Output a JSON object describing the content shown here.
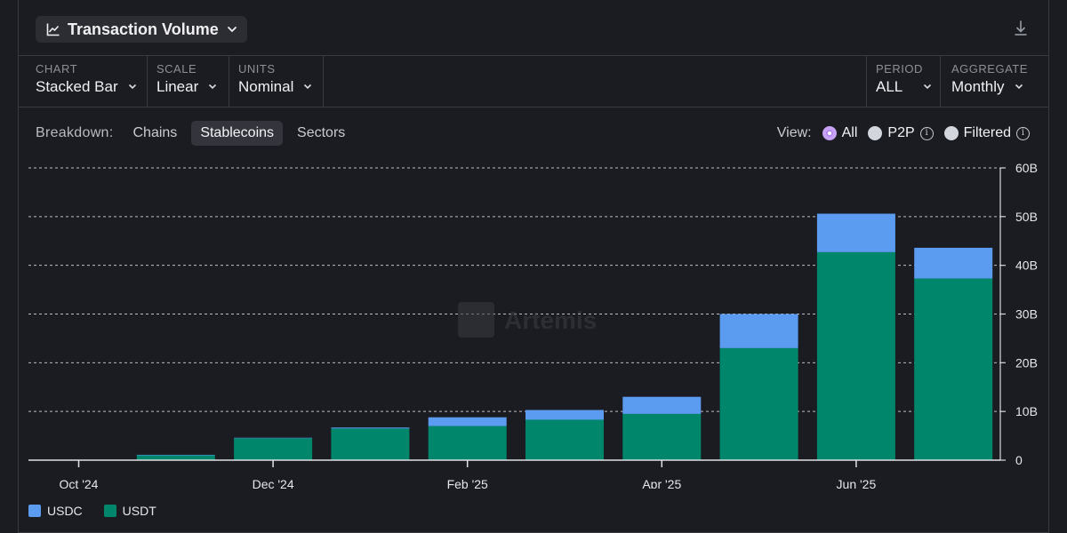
{
  "header": {
    "metric_label": "Transaction Volume"
  },
  "controls": {
    "chart": {
      "caption": "CHART",
      "value": "Stacked Bar"
    },
    "scale": {
      "caption": "SCALE",
      "value": "Linear"
    },
    "units": {
      "caption": "UNITS",
      "value": "Nominal"
    },
    "period": {
      "caption": "PERIOD",
      "value": "ALL"
    },
    "aggregate": {
      "caption": "AGGREGATE",
      "value": "Monthly"
    }
  },
  "breakdown": {
    "label": "Breakdown:",
    "options": [
      "Chains",
      "Stablecoins",
      "Sectors"
    ],
    "active": "Stablecoins"
  },
  "view": {
    "label": "View:",
    "options": [
      "All",
      "P2P",
      "Filtered"
    ],
    "selected": "All"
  },
  "watermark": "Artemis",
  "colors": {
    "usdc": "#5b9cf0",
    "usdt": "#00866a",
    "background": "#1b1c21"
  },
  "chart_data": {
    "type": "bar",
    "stacked": true,
    "categories": [
      "Oct '24",
      "Nov '24",
      "Dec '24",
      "Jan '25",
      "Feb '25",
      "Mar '25",
      "Apr '25",
      "May '25",
      "Jun '25",
      "Jul '25"
    ],
    "x_tick_labels": [
      "Oct '24",
      "Dec '24",
      "Feb '25",
      "Apr '25",
      "Jun '25"
    ],
    "series": [
      {
        "name": "USDT",
        "values": [
          0,
          1.0,
          4.5,
          6.5,
          7.0,
          8.3,
          9.5,
          23.0,
          42.7,
          37.3
        ]
      },
      {
        "name": "USDC",
        "values": [
          0,
          0.1,
          0.1,
          0.2,
          1.8,
          2.0,
          3.5,
          7.0,
          7.9,
          6.3
        ]
      }
    ],
    "y_tick_labels": [
      "0",
      "10B",
      "20B",
      "30B",
      "40B",
      "50B",
      "60B"
    ],
    "ylim": [
      0,
      60
    ],
    "yaxis_position": "right",
    "grid": "horizontal dashed",
    "legend_position": "bottom-left"
  }
}
